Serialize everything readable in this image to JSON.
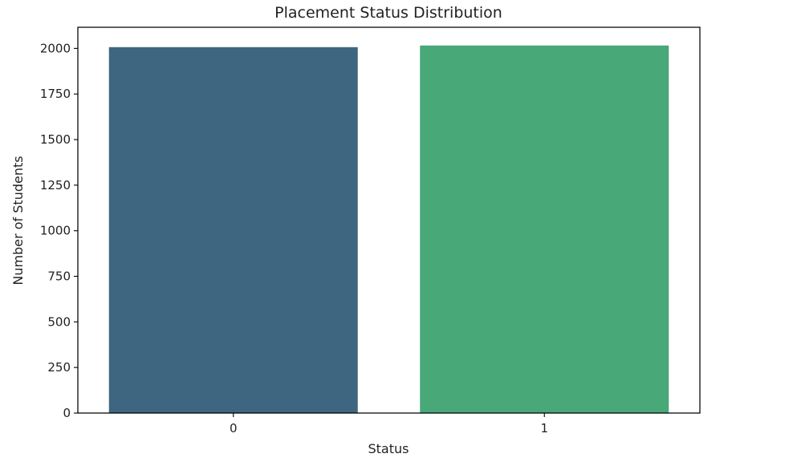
{
  "chart_data": {
    "type": "bar",
    "title": "Placement Status Distribution",
    "xlabel": "Status",
    "ylabel": "Number of Students",
    "categories": [
      "0",
      "1"
    ],
    "values": [
      2007,
      2016
    ],
    "colors": [
      "#3e6680",
      "#48a878"
    ],
    "ylim": [
      0,
      2116
    ],
    "yticks": [
      0,
      250,
      500,
      750,
      1000,
      1250,
      1500,
      1750,
      2000
    ],
    "grid": false,
    "legend": "none"
  }
}
